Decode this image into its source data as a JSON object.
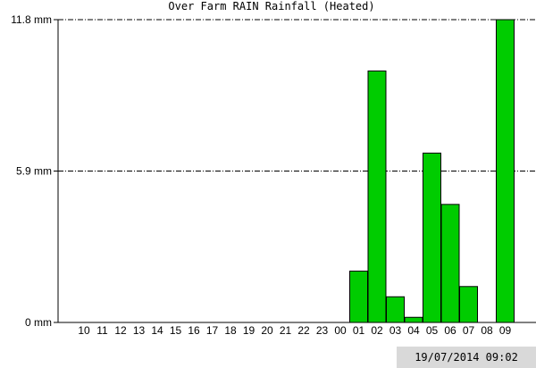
{
  "chart_data": {
    "type": "bar",
    "title": "Over Farm RAIN Rainfall (Heated)",
    "xlabel": "",
    "ylabel": "",
    "categories": [
      "10",
      "11",
      "12",
      "13",
      "14",
      "15",
      "16",
      "17",
      "18",
      "19",
      "20",
      "21",
      "22",
      "23",
      "00",
      "01",
      "02",
      "03",
      "04",
      "05",
      "06",
      "07",
      "08",
      "09"
    ],
    "values": [
      0,
      0,
      0,
      0,
      0,
      0,
      0,
      0,
      0,
      0,
      0,
      0,
      0,
      0,
      0,
      2.0,
      9.8,
      1.0,
      0.2,
      6.6,
      4.6,
      1.4,
      0,
      11.8
    ],
    "ylim": [
      0,
      11.8
    ],
    "yticks": [
      {
        "value": 0,
        "label": "0 mm"
      },
      {
        "value": 5.9,
        "label": "5.9 mm"
      },
      {
        "value": 11.8,
        "label": "11.8 mm"
      }
    ],
    "grid": true,
    "bar_color": "#00cc00",
    "bar_edge_color": "#000000"
  },
  "timestamp": "19/07/2014 09:02"
}
